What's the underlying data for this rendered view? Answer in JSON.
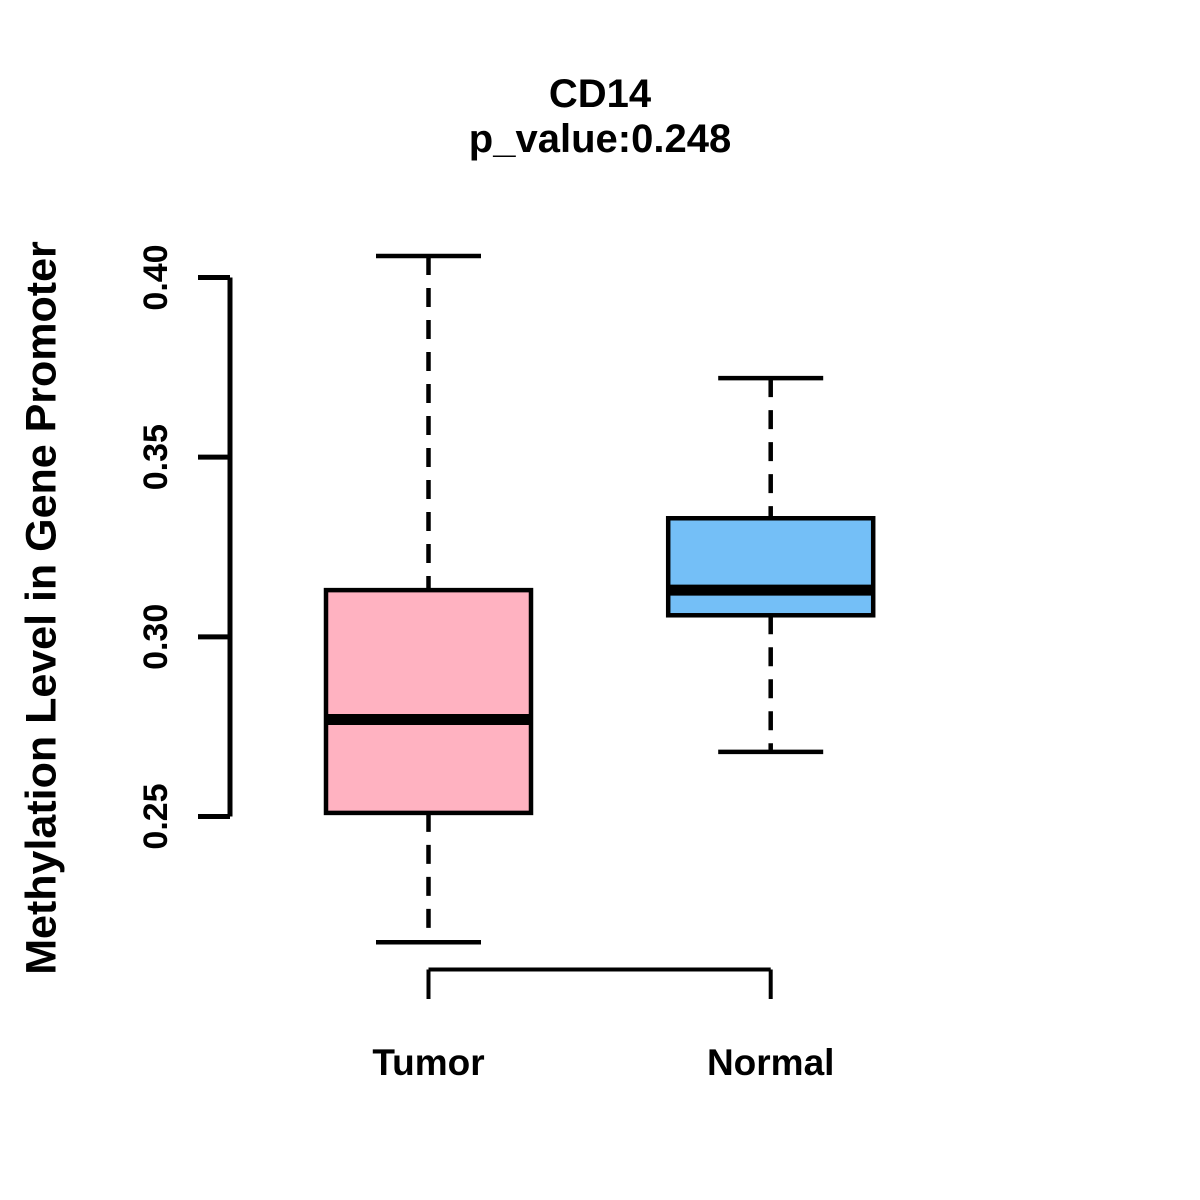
{
  "title": {
    "line1": "CD14",
    "line2": "p_value:0.248"
  },
  "chart_data": {
    "type": "boxplot",
    "title": "CD14",
    "subtitle": "p_value:0.248",
    "p_value": 0.248,
    "categories": [
      "Tumor",
      "Normal"
    ],
    "ylabel": "Methylation Level in Gene Promoter",
    "xlabel": "",
    "ylim": [
      0.25,
      0.4
    ],
    "yticks": [
      0.25,
      0.3,
      0.35,
      0.4
    ],
    "ytick_labels": [
      "0.25",
      "0.30",
      "0.35",
      "0.40"
    ],
    "grid": false,
    "legend": "none",
    "series": [
      {
        "name": "Tumor",
        "box_color": "#FFB2C1",
        "whisker_low": 0.215,
        "q1": 0.251,
        "median": 0.277,
        "q3": 0.313,
        "whisker_high": 0.406
      },
      {
        "name": "Normal",
        "box_color": "#74BFF7",
        "whisker_low": 0.268,
        "q1": 0.306,
        "median": 0.313,
        "q3": 0.333,
        "whisker_high": 0.372
      }
    ],
    "colors": {
      "box_border": "#000000",
      "median_line": "#000000",
      "axis": "#000000",
      "text": "#000000"
    }
  }
}
